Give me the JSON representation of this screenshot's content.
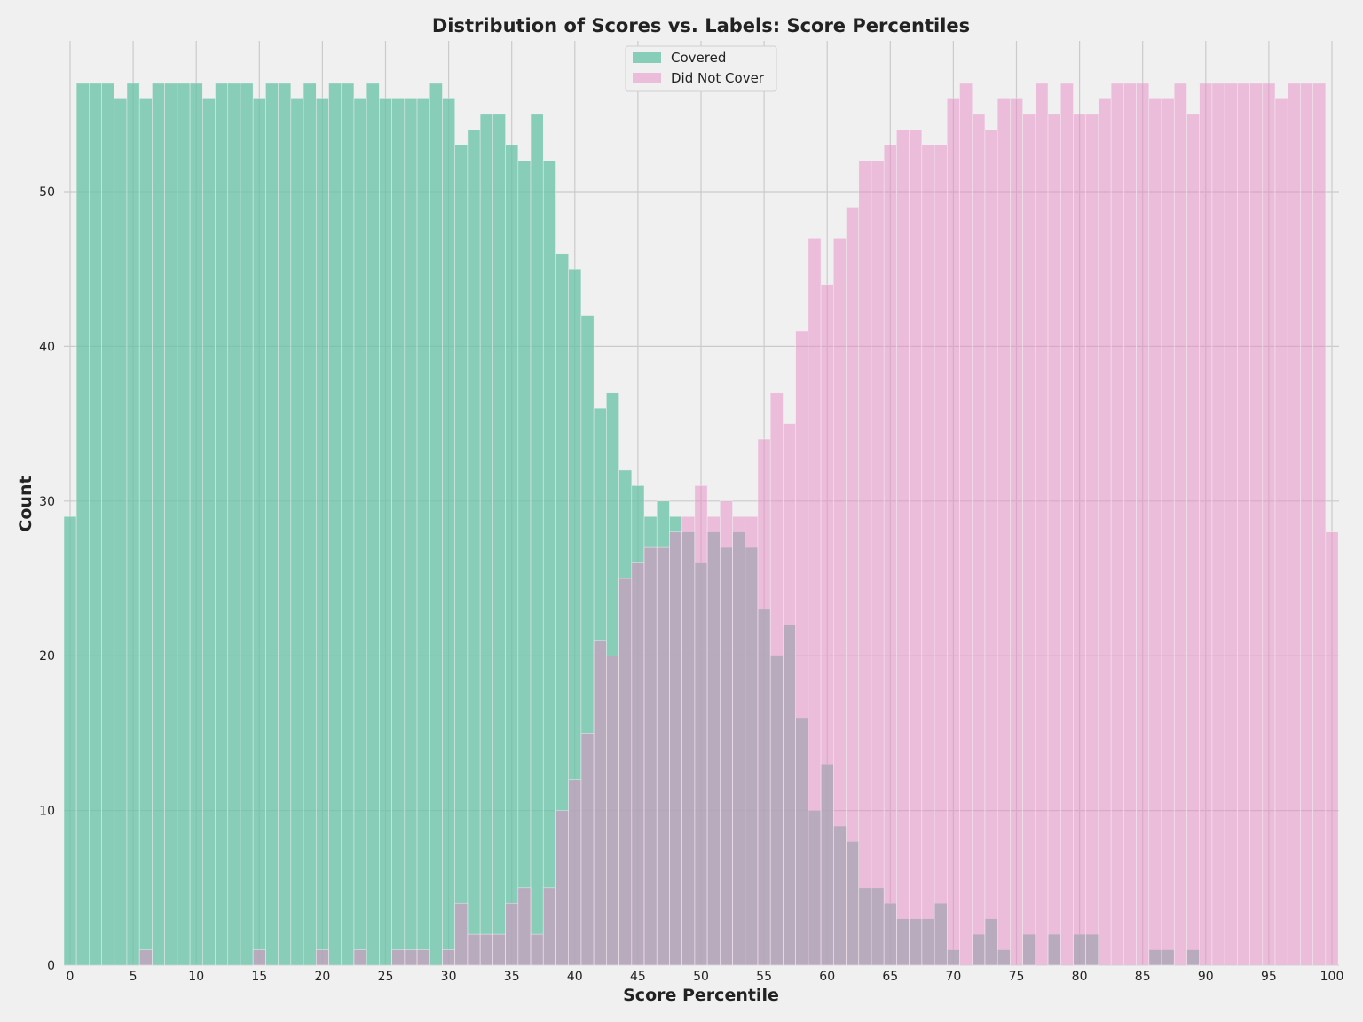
{
  "colors": {
    "background": "#f0f0f0",
    "grid": "#cbcbcb",
    "covered": "#66c2a5",
    "did_not_cover": "#e78ac3"
  },
  "chart_data": {
    "type": "histogram",
    "title": "Distribution of Scores vs. Labels: Score Percentiles",
    "xlabel": "Score Percentile",
    "ylabel": "Count",
    "xlim": [
      0,
      100
    ],
    "ylim": [
      0,
      59
    ],
    "xticks": [
      0,
      5,
      10,
      15,
      20,
      25,
      30,
      35,
      40,
      45,
      50,
      55,
      60,
      65,
      70,
      75,
      80,
      85,
      90,
      95,
      100
    ],
    "yticks": [
      0,
      10,
      20,
      30,
      40,
      50
    ],
    "bin_width": 1,
    "bin_starts": [
      0,
      1,
      2,
      3,
      4,
      5,
      6,
      7,
      8,
      9,
      10,
      11,
      12,
      13,
      14,
      15,
      16,
      17,
      18,
      19,
      20,
      21,
      22,
      23,
      24,
      25,
      26,
      27,
      28,
      29,
      30,
      31,
      32,
      33,
      34,
      35,
      36,
      37,
      38,
      39,
      40,
      41,
      42,
      43,
      44,
      45,
      46,
      47,
      48,
      49,
      50,
      51,
      52,
      53,
      54,
      55,
      56,
      57,
      58,
      59,
      60,
      61,
      62,
      63,
      64,
      65,
      66,
      67,
      68,
      69,
      70,
      71,
      72,
      73,
      74,
      75,
      76,
      77,
      78,
      79,
      80,
      81,
      82,
      83,
      84,
      85,
      86,
      87,
      88,
      89,
      90,
      91,
      92,
      93,
      94,
      95,
      96,
      97,
      98,
      99,
      100
    ],
    "grid": true,
    "legend": "top-center",
    "series": [
      {
        "name": "Covered",
        "color": "#66c2a5",
        "values": [
          29,
          57,
          57,
          57,
          56,
          57,
          56,
          57,
          57,
          57,
          57,
          56,
          57,
          57,
          57,
          56,
          57,
          57,
          56,
          57,
          56,
          57,
          57,
          56,
          57,
          56,
          56,
          56,
          56,
          57,
          56,
          53,
          54,
          55,
          55,
          53,
          52,
          55,
          52,
          46,
          45,
          42,
          36,
          37,
          32,
          31,
          29,
          30,
          29,
          28,
          26,
          28,
          27,
          28,
          27,
          23,
          20,
          22,
          16,
          10,
          13,
          9,
          8,
          5,
          5,
          4,
          3,
          3,
          3,
          4,
          1,
          0,
          2,
          3,
          1,
          0,
          2,
          0,
          2,
          0,
          2,
          2,
          0,
          0,
          0,
          0,
          1,
          1,
          0,
          1,
          0,
          0,
          0,
          0,
          0,
          0,
          0,
          0,
          0,
          0,
          0
        ]
      },
      {
        "name": "Did Not Cover",
        "color": "#e78ac3",
        "values": [
          0,
          0,
          0,
          0,
          0,
          0,
          1,
          0,
          0,
          0,
          0,
          0,
          0,
          0,
          0,
          1,
          0,
          0,
          0,
          0,
          1,
          0,
          0,
          1,
          0,
          0,
          1,
          1,
          1,
          0,
          1,
          4,
          2,
          2,
          2,
          4,
          5,
          2,
          5,
          10,
          12,
          15,
          21,
          20,
          25,
          26,
          27,
          27,
          28,
          29,
          31,
          29,
          30,
          29,
          29,
          34,
          37,
          35,
          41,
          47,
          44,
          47,
          49,
          52,
          52,
          53,
          54,
          54,
          53,
          53,
          56,
          57,
          55,
          54,
          56,
          56,
          55,
          57,
          55,
          57,
          55,
          55,
          56,
          57,
          57,
          57,
          56,
          56,
          57,
          55,
          57,
          57,
          57,
          57,
          57,
          57,
          56,
          57,
          57,
          57,
          28
        ]
      }
    ]
  }
}
